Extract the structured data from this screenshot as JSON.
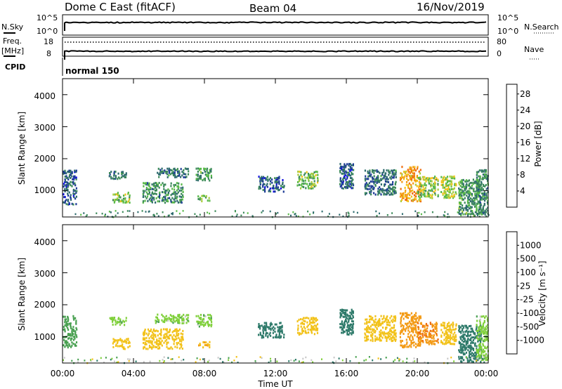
{
  "header": {
    "radar": "Dome C East (fitACF)",
    "beam": "Beam 04",
    "date": "16/Nov/2019"
  },
  "status_panels": {
    "nsky_label": "N.Sky",
    "nsky_ticks": [
      "10^5",
      "10^0"
    ],
    "nsearch_label": "N.Search",
    "nsearch_ticks": [
      "10^5",
      "10^0"
    ],
    "freq_label_line1": "Freq.",
    "freq_label_line2": "[MHz]",
    "freq_ticks": [
      "18",
      "8"
    ],
    "nave_label": "Nave",
    "nave_ticks": [
      "80",
      "0"
    ],
    "cpid_label": "CPID",
    "cpid_value": "normal 150"
  },
  "axes": {
    "xlabel": "Time UT",
    "x_ticks": [
      "00:00",
      "04:00",
      "08:00",
      "12:00",
      "16:00",
      "20:00",
      "00:00"
    ],
    "ylabel": "Slant Range [km]",
    "y_ticks": [
      "1000",
      "2000",
      "3000",
      "4000"
    ]
  },
  "power_scale": {
    "label": "Power [dB]",
    "ticks": [
      "4",
      "8",
      "12",
      "16",
      "20",
      "24",
      "28"
    ],
    "colors": [
      "#1010e0",
      "#1e3c96",
      "#2e6b6e",
      "#3d8a5a",
      "#58b948",
      "#a6cc3c",
      "#f2c21a",
      "#f39a14",
      "#ef6c0e",
      "#ec3c0a",
      "#e81010"
    ]
  },
  "velocity_scale": {
    "label": "Velocity [m s⁻¹]",
    "ticks": [
      "1000",
      "500",
      "100",
      "25",
      "-25",
      "-100",
      "-500",
      "-1000"
    ],
    "colors": [
      "#1c3cc8",
      "#1e5a9c",
      "#2e7a6a",
      "#48a050",
      "#7fd03a",
      "#c8c8c8",
      "#f2c21a",
      "#f39a14",
      "#ef6c0e",
      "#e81010"
    ]
  },
  "chart_data": [
    {
      "type": "heatmap",
      "quantity": "Power",
      "units": "dB",
      "x_range_hours": [
        0,
        24
      ],
      "y_range_km": [
        180,
        4500
      ],
      "scale_range": [
        0,
        30
      ],
      "clusters": [
        {
          "t0": 0.0,
          "t1": 0.8,
          "r0": 600,
          "r1": 1700,
          "value": 6
        },
        {
          "t0": 2.8,
          "t1": 3.8,
          "r0": 650,
          "r1": 1000,
          "value": 14
        },
        {
          "t0": 2.6,
          "t1": 3.6,
          "r0": 1400,
          "r1": 1650,
          "value": 7
        },
        {
          "t0": 4.5,
          "t1": 6.8,
          "r0": 650,
          "r1": 1300,
          "value": 9
        },
        {
          "t0": 5.2,
          "t1": 7.1,
          "r0": 1450,
          "r1": 1750,
          "value": 7
        },
        {
          "t0": 7.6,
          "t1": 8.3,
          "r0": 700,
          "r1": 900,
          "value": 12
        },
        {
          "t0": 7.5,
          "t1": 8.4,
          "r0": 1350,
          "r1": 1750,
          "value": 10
        },
        {
          "t0": 11.0,
          "t1": 12.5,
          "r0": 1000,
          "r1": 1500,
          "value": 6
        },
        {
          "t0": 13.2,
          "t1": 14.4,
          "r0": 1100,
          "r1": 1650,
          "value": 13
        },
        {
          "t0": 15.6,
          "t1": 16.4,
          "r0": 1100,
          "r1": 1900,
          "value": 6
        },
        {
          "t0": 17.0,
          "t1": 18.8,
          "r0": 900,
          "r1": 1700,
          "value": 7
        },
        {
          "t0": 19.0,
          "t1": 20.2,
          "r0": 700,
          "r1": 1800,
          "value": 20
        },
        {
          "t0": 20.0,
          "t1": 21.2,
          "r0": 800,
          "r1": 1500,
          "value": 14
        },
        {
          "t0": 21.3,
          "t1": 22.2,
          "r0": 800,
          "r1": 1500,
          "value": 15
        },
        {
          "t0": 22.3,
          "t1": 23.6,
          "r0": 250,
          "r1": 1400,
          "value": 10
        },
        {
          "t0": 23.3,
          "t1": 24.0,
          "r0": 300,
          "r1": 1700,
          "value": 9
        }
      ]
    },
    {
      "type": "heatmap",
      "quantity": "Velocity",
      "units": "m s-1",
      "x_range_hours": [
        0,
        24
      ],
      "y_range_km": [
        180,
        4500
      ],
      "clusters": [
        {
          "t0": 0.0,
          "t1": 0.8,
          "r0": 700,
          "r1": 1700,
          "value": 60
        },
        {
          "t0": 2.8,
          "t1": 3.8,
          "r0": 650,
          "r1": 1000,
          "value": -400
        },
        {
          "t0": 2.6,
          "t1": 3.6,
          "r0": 1400,
          "r1": 1650,
          "value": 0
        },
        {
          "t0": 4.5,
          "t1": 6.8,
          "r0": 650,
          "r1": 1300,
          "value": -400
        },
        {
          "t0": 5.2,
          "t1": 7.1,
          "r0": 1450,
          "r1": 1750,
          "value": 0
        },
        {
          "t0": 7.6,
          "t1": 8.3,
          "r0": 700,
          "r1": 900,
          "value": -500
        },
        {
          "t0": 7.5,
          "t1": 8.4,
          "r0": 1350,
          "r1": 1750,
          "value": 0
        },
        {
          "t0": 11.0,
          "t1": 12.5,
          "r0": 1000,
          "r1": 1500,
          "value": 200
        },
        {
          "t0": 13.2,
          "t1": 14.4,
          "r0": 1100,
          "r1": 1650,
          "value": -150
        },
        {
          "t0": 15.6,
          "t1": 16.4,
          "r0": 1100,
          "r1": 1900,
          "value": 300
        },
        {
          "t0": 17.0,
          "t1": 18.8,
          "r0": 900,
          "r1": 1700,
          "value": -200
        },
        {
          "t0": 19.0,
          "t1": 20.2,
          "r0": 700,
          "r1": 1800,
          "value": -800
        },
        {
          "t0": 20.0,
          "t1": 21.2,
          "r0": 800,
          "r1": 1500,
          "value": -900
        },
        {
          "t0": 21.3,
          "t1": 22.2,
          "r0": 800,
          "r1": 1500,
          "value": -300
        },
        {
          "t0": 22.3,
          "t1": 23.6,
          "r0": 250,
          "r1": 1400,
          "value": 300
        },
        {
          "t0": 23.3,
          "t1": 24.0,
          "r0": 300,
          "r1": 1700,
          "value": 0
        }
      ]
    }
  ]
}
